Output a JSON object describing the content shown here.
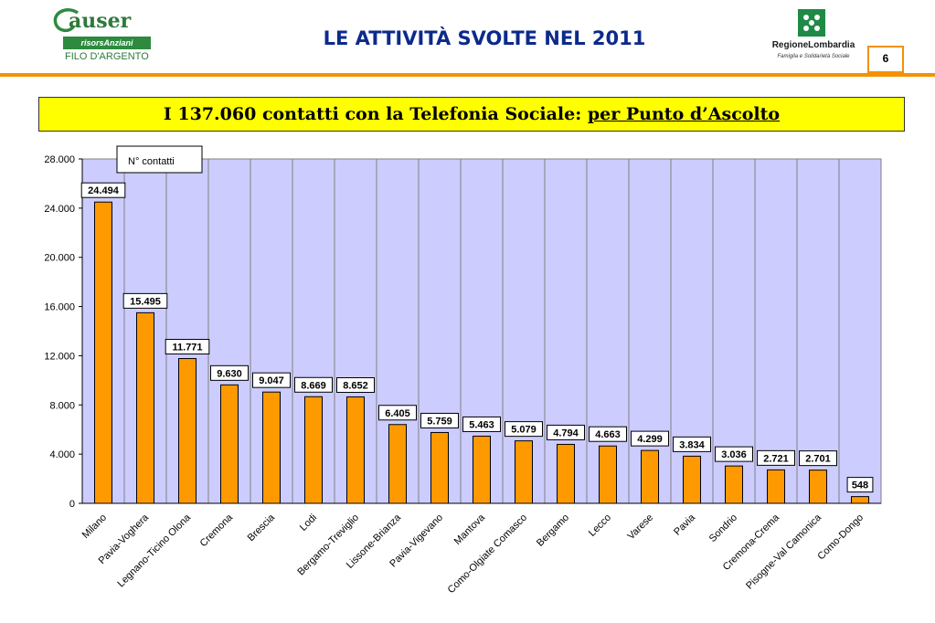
{
  "header": {
    "title": "LE ATTIVITÀ SVOLTE NEL 2011",
    "page_number": "6",
    "accent_color": "#f39200"
  },
  "logo_left": {
    "brand": "auser",
    "band": "risorsAnziani",
    "subline": "FILO D'ARGENTO"
  },
  "logo_right": {
    "name": "RegioneLombardia",
    "tagline": "Famiglia e Solidarietà Sociale"
  },
  "subtitle": {
    "main": "I 137.060 contatti con la Telefonia Sociale: ",
    "underlined": "per Punto d’Ascolto"
  },
  "chart_data": {
    "type": "bar",
    "legend": "N° contatti",
    "legend_position": "top-left",
    "plot_background": "#ccccff",
    "bar_color": "#ff9900",
    "grid": "vertical",
    "ylim": [
      0,
      28000
    ],
    "yticks": [
      "0",
      "4.000",
      "8.000",
      "12.000",
      "16.000",
      "20.000",
      "24.000",
      "28.000"
    ],
    "categories": [
      "Milano",
      "Pavia-Voghera",
      "Legnano-Ticino Olona",
      "Cremona",
      "Brescia",
      "Lodi",
      "Bergamo-Treviglio",
      "Lissone-Brianza",
      "Pavia-Vigevano",
      "Mantova",
      "Como-Olgiate Comasco",
      "Bergamo",
      "Lecco",
      "Varese",
      "Pavia",
      "Sondrio",
      "Cremona-Crema",
      "Pisogne-Val Camonica",
      "Como-Dongo"
    ],
    "values": [
      24494,
      15495,
      11771,
      9630,
      9047,
      8669,
      8652,
      6405,
      5759,
      5463,
      5079,
      4794,
      4663,
      4299,
      3834,
      3036,
      2721,
      2701,
      548
    ],
    "value_labels": [
      "24.494",
      "15.495",
      "11.771",
      "9.630",
      "9.047",
      "8.669",
      "8.652",
      "6.405",
      "5.759",
      "5.463",
      "5.079",
      "4.794",
      "4.663",
      "4.299",
      "3.834",
      "3.036",
      "2.721",
      "2.701",
      "548"
    ]
  }
}
